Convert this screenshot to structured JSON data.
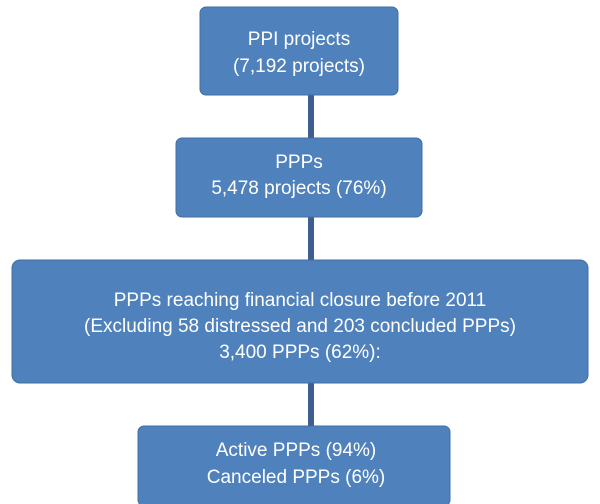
{
  "nodes": [
    {
      "lines": [
        "PPI projects",
        "(7,192 projects)"
      ]
    },
    {
      "lines": [
        "PPPs",
        "5,478 projects (76%)"
      ]
    },
    {
      "lines": [
        "PPPs reaching financial closure before 2011",
        "(Excluding 58 distressed and 203 concluded PPPs)",
        "3,400 PPPs (62%):"
      ]
    },
    {
      "lines": [
        "Active PPPs (94%)",
        "Canceled PPPs (6%)"
      ]
    }
  ]
}
